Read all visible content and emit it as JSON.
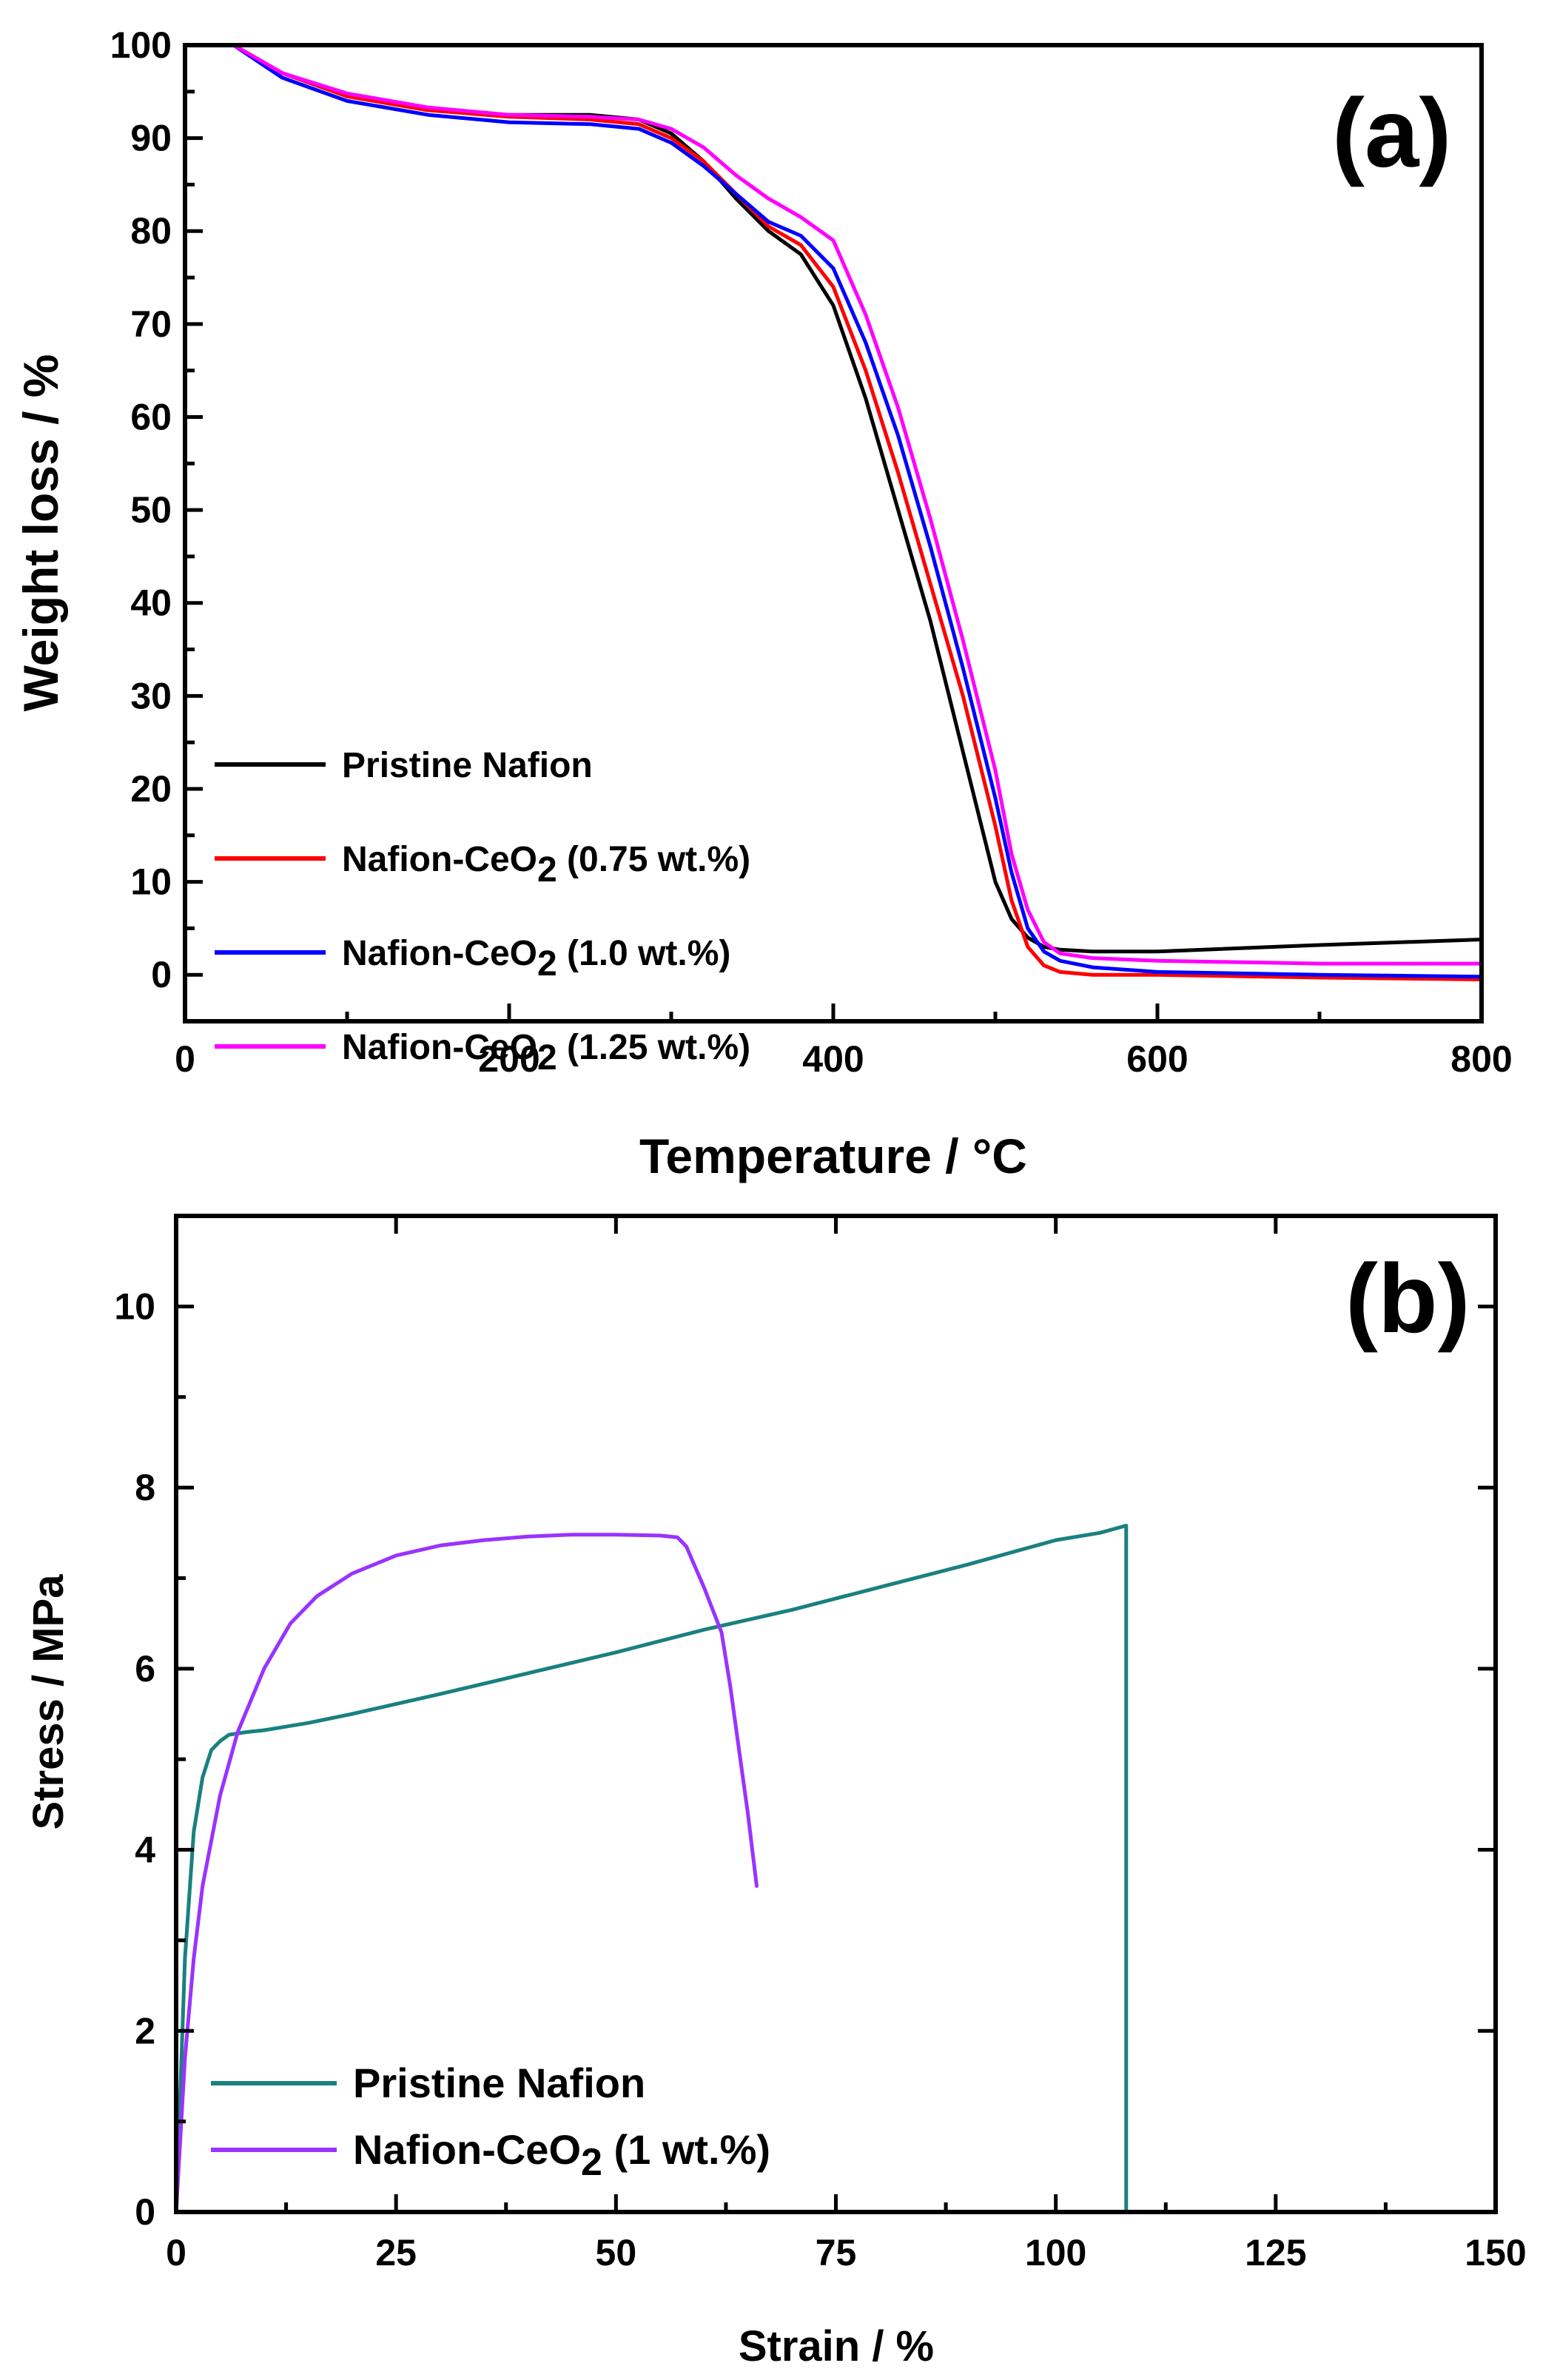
{
  "chart_data": [
    {
      "type": "line",
      "panel_label": "(a)",
      "xlabel": "Temperature / °C",
      "ylabel": "Weight loss / %",
      "xlim": [
        0,
        800
      ],
      "ylim": [
        -5,
        100
      ],
      "x_ticks": [
        0,
        200,
        400,
        600,
        800
      ],
      "y_ticks": [
        0,
        10,
        20,
        30,
        40,
        50,
        60,
        70,
        80,
        90,
        100
      ],
      "legend_position": "bottom-left",
      "series": [
        {
          "name": "Pristine Nafion",
          "label_main": "Pristine Nafion",
          "label_sub": "",
          "label_tail": "",
          "color": "#000000",
          "x": [
            30,
            60,
            100,
            150,
            200,
            250,
            280,
            300,
            320,
            340,
            360,
            380,
            400,
            420,
            440,
            460,
            480,
            500,
            510,
            520,
            530,
            540,
            560,
            600,
            700,
            800
          ],
          "y": [
            100,
            97,
            94.5,
            93,
            92.5,
            92.5,
            92,
            90.5,
            87.5,
            83.5,
            80,
            77.5,
            72,
            62,
            50,
            38,
            24,
            10,
            6,
            4,
            3,
            2.7,
            2.5,
            2.5,
            3.2,
            3.8
          ]
        },
        {
          "name": "Nafion-CeO2 (0.75 wt.%)",
          "label_main": "Nafion-CeO",
          "label_sub": "2",
          "label_tail": " (0.75 wt.%)",
          "color": "#ff0000",
          "x": [
            30,
            60,
            100,
            150,
            200,
            250,
            280,
            300,
            320,
            340,
            360,
            380,
            400,
            420,
            440,
            460,
            480,
            500,
            510,
            520,
            530,
            540,
            560,
            600,
            700,
            800
          ],
          "y": [
            100,
            97,
            94.5,
            93,
            92.3,
            92,
            91.5,
            90,
            87.5,
            84,
            80.5,
            78.5,
            74,
            65,
            54,
            42,
            30,
            16,
            8,
            3,
            1,
            0.3,
            0,
            0,
            -0.3,
            -0.5
          ]
        },
        {
          "name": "Nafion-CeO2 (1.0 wt.%)",
          "label_main": "Nafion-CeO",
          "label_sub": "2",
          "label_tail": " (1.0 wt.%)",
          "color": "#0000ff",
          "x": [
            30,
            60,
            100,
            150,
            200,
            250,
            280,
            300,
            320,
            340,
            360,
            380,
            400,
            420,
            440,
            460,
            480,
            500,
            510,
            520,
            530,
            540,
            560,
            600,
            700,
            800
          ],
          "y": [
            100,
            96.5,
            94,
            92.5,
            91.7,
            91.5,
            91,
            89.5,
            87,
            84,
            81,
            79.5,
            76,
            68,
            58,
            46,
            33,
            19,
            11,
            5,
            2.5,
            1.5,
            0.8,
            0.3,
            0,
            -0.2
          ]
        },
        {
          "name": "Nafion-CeO2 (1.25 wt.%)",
          "label_main": "Nafion-CeO",
          "label_sub": "2",
          "label_tail": " (1.25 wt.%)",
          "color": "#ff00ff",
          "x": [
            30,
            60,
            100,
            150,
            200,
            250,
            280,
            300,
            320,
            340,
            360,
            380,
            400,
            420,
            440,
            460,
            480,
            500,
            510,
            520,
            530,
            540,
            560,
            600,
            700,
            800
          ],
          "y": [
            100,
            97,
            94.8,
            93.3,
            92.5,
            92.3,
            92,
            91,
            89,
            86,
            83.5,
            81.5,
            79,
            71,
            61,
            49,
            36,
            22,
            13,
            7,
            3.5,
            2.3,
            1.8,
            1.5,
            1.2,
            1.2
          ]
        }
      ]
    },
    {
      "type": "line",
      "panel_label": "(b)",
      "xlabel": "Strain / %",
      "ylabel": "Stress / MPa",
      "xlim": [
        0,
        150
      ],
      "ylim": [
        0,
        11
      ],
      "x_ticks": [
        0,
        25,
        50,
        75,
        100,
        125,
        150
      ],
      "y_ticks": [
        0,
        2,
        4,
        6,
        8,
        10
      ],
      "legend_position": "bottom-left",
      "series": [
        {
          "name": "Pristine Nafion",
          "label_main": "Pristine Nafion",
          "label_sub": "",
          "label_tail": "",
          "color": "#1a8080",
          "x": [
            0,
            1,
            2,
            3,
            4,
            5,
            6,
            8,
            10,
            15,
            20,
            30,
            40,
            50,
            60,
            70,
            80,
            90,
            100,
            105,
            108,
            108,
            108
          ],
          "y": [
            0,
            2.8,
            4.2,
            4.8,
            5.1,
            5.2,
            5.27,
            5.3,
            5.32,
            5.4,
            5.5,
            5.72,
            5.95,
            6.18,
            6.43,
            6.65,
            6.9,
            7.15,
            7.42,
            7.5,
            7.58,
            7.58,
            0
          ]
        },
        {
          "name": "Nafion-CeO2 (1 wt.%)",
          "label_main": "Nafion-CeO",
          "label_sub": "2",
          "label_tail": " (1 wt.%)",
          "color": "#9933ff",
          "x": [
            0,
            1,
            2,
            3,
            5,
            7,
            10,
            13,
            16,
            20,
            25,
            30,
            35,
            40,
            45,
            50,
            55,
            57,
            58,
            60,
            62,
            63,
            64,
            65,
            66
          ],
          "y": [
            0,
            1.7,
            2.8,
            3.6,
            4.6,
            5.3,
            6.0,
            6.5,
            6.8,
            7.05,
            7.25,
            7.36,
            7.42,
            7.46,
            7.48,
            7.48,
            7.47,
            7.45,
            7.35,
            6.9,
            6.4,
            5.8,
            5.1,
            4.4,
            3.6
          ]
        }
      ]
    }
  ]
}
